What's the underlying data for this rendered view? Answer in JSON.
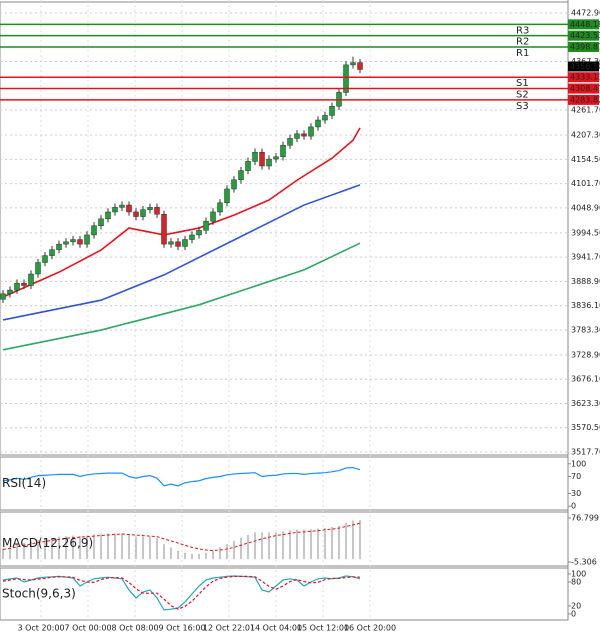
{
  "chart_data": [
    {
      "type": "candlestick",
      "candles": {
        "open": [
          3850,
          3862,
          3870,
          3885,
          3880,
          3905,
          3930,
          3945,
          3958,
          3970,
          3975,
          3980,
          3970,
          3990,
          4010,
          4025,
          4040,
          4050,
          4055,
          4040,
          4030,
          4045,
          4050,
          4035,
          3970,
          3975,
          3965,
          3980,
          3990,
          4000,
          4020,
          4040,
          4060,
          4090,
          4110,
          4130,
          4150,
          4170,
          4140,
          4155,
          4160,
          4185,
          4200,
          4210,
          4205,
          4225,
          4240,
          4250,
          4270,
          4300,
          4360,
          4365
        ],
        "high": [
          3870,
          3878,
          3893,
          3893,
          3913,
          3938,
          3953,
          3966,
          3978,
          3983,
          3988,
          3988,
          3998,
          4018,
          4033,
          4048,
          4058,
          4063,
          4063,
          4048,
          4053,
          4058,
          4058,
          4043,
          3983,
          3983,
          3988,
          3998,
          4008,
          4028,
          4048,
          4068,
          4098,
          4118,
          4138,
          4158,
          4178,
          4178,
          4163,
          4168,
          4193,
          4208,
          4218,
          4218,
          4233,
          4248,
          4258,
          4278,
          4308,
          4368,
          4378,
          4373
        ],
        "low": [
          3842,
          3854,
          3862,
          3872,
          3872,
          3897,
          3922,
          3937,
          3950,
          3962,
          3967,
          3962,
          3962,
          3982,
          4002,
          4017,
          4032,
          4042,
          4032,
          4022,
          4022,
          4037,
          4027,
          3962,
          3962,
          3957,
          3957,
          3972,
          3982,
          3992,
          4012,
          4032,
          4052,
          4082,
          4102,
          4122,
          4142,
          4132,
          4132,
          4147,
          4152,
          4177,
          4192,
          4197,
          4197,
          4217,
          4232,
          4242,
          4262,
          4292,
          4352,
          4342
        ],
        "close": [
          3862,
          3870,
          3885,
          3880,
          3905,
          3930,
          3945,
          3958,
          3970,
          3975,
          3980,
          3970,
          3990,
          4010,
          4025,
          4040,
          4050,
          4055,
          4040,
          4030,
          4045,
          4050,
          4035,
          3970,
          3975,
          3965,
          3980,
          3990,
          4000,
          4020,
          4040,
          4060,
          4090,
          4110,
          4130,
          4150,
          4170,
          4140,
          4155,
          4160,
          4185,
          4200,
          4210,
          4205,
          4225,
          4240,
          4250,
          4270,
          4300,
          4360,
          4365,
          4350
        ]
      },
      "up_color": "#22a03c",
      "down_color": "#d8232a",
      "ylim": [
        3511.2,
        4496.8
      ],
      "yticks": [
        {
          "value": 4472.9,
          "label": "4472.90"
        },
        {
          "value": 4367.3,
          "label": "4367.30"
        },
        {
          "value": 4261.7,
          "label": "4261.70"
        },
        {
          "value": 4207.3,
          "label": "4207.30"
        },
        {
          "value": 4154.5,
          "label": "4154.50"
        },
        {
          "value": 4101.7,
          "label": "4101.70"
        },
        {
          "value": 4048.9,
          "label": "4048.90"
        },
        {
          "value": 3994.5,
          "label": "3994.50"
        },
        {
          "value": 3941.7,
          "label": "3941.70"
        },
        {
          "value": 3888.9,
          "label": "3888.90"
        },
        {
          "value": 3836.1,
          "label": "3836.10"
        },
        {
          "value": 3783.3,
          "label": "3783.30"
        },
        {
          "value": 3728.9,
          "label": "3728.90"
        },
        {
          "value": 3676.1,
          "label": "3676.10"
        },
        {
          "value": 3623.3,
          "label": "3623.30"
        },
        {
          "value": 3570.5,
          "label": "3570.50"
        },
        {
          "value": 3517.7,
          "label": "3517.70"
        }
      ],
      "grid": true,
      "moving_averages": [
        {
          "color": "#e8141e",
          "x": [
            0,
            8,
            14,
            18,
            23,
            28,
            33,
            38,
            42,
            47,
            50,
            51
          ],
          "values": [
            3855,
            3909,
            3957,
            4005,
            3990,
            4005,
            4033,
            4066,
            4109,
            4157,
            4196,
            4223
          ]
        },
        {
          "color": "#2f55d4",
          "x": [
            0,
            14,
            23,
            33,
            43,
            51
          ],
          "values": [
            3805,
            3848,
            3903,
            3979,
            4055,
            4099
          ]
        },
        {
          "color": "#2ea866",
          "x": [
            0,
            14,
            28,
            43,
            51
          ],
          "values": [
            3740,
            3783,
            3838,
            3914,
            3972
          ]
        }
      ],
      "levels": [
        {
          "name": "R3",
          "value": 4448.18,
          "color": "#1e8c1e"
        },
        {
          "name": "R2",
          "value": 4423.53,
          "color": "#1e8c1e"
        },
        {
          "name": "R1",
          "value": 4398.87,
          "color": "#1e8c1e"
        },
        {
          "name": "S1",
          "value": 4333.13,
          "color": "#e0141e"
        },
        {
          "name": "S2",
          "value": 4308.47,
          "color": "#e0141e"
        },
        {
          "name": "S3",
          "value": 4283.82,
          "color": "#e0141e"
        }
      ],
      "last_price": {
        "value": 4356.5,
        "label": "4356.50"
      },
      "x_labels": [
        ":00",
        "3 Oct 20:00",
        "7 Oct 00:00",
        "8 Oct 08:00",
        "9 Oct 16:00",
        "12 Oct 22:01",
        "14 Oct 04:00",
        "15 Oct 12:00",
        "16 Oct 20:00"
      ]
    },
    {
      "type": "line",
      "title": "RSI(14)",
      "ylim": [
        -9,
        116
      ],
      "yticks": [
        100,
        70,
        30,
        0
      ],
      "series": [
        {
          "color": "#1e8fff",
          "values": [
            60,
            62,
            66,
            63,
            68,
            72,
            73,
            74,
            75,
            75,
            75,
            70,
            74,
            76,
            77,
            78,
            78,
            78,
            70,
            66,
            70,
            72,
            66,
            48,
            52,
            48,
            55,
            58,
            60,
            65,
            68,
            70,
            74,
            76,
            77,
            78,
            79,
            70,
            72,
            73,
            76,
            77,
            77,
            75,
            77,
            78,
            79,
            81,
            84,
            90,
            91,
            86
          ]
        }
      ]
    },
    {
      "type": "macd",
      "title": "MACD(12,26,9)",
      "ylim": [
        -12.8,
        88
      ],
      "yticks": [
        76.799,
        -5.306
      ],
      "histogram": {
        "color": "#b4b4b4",
        "values": [
          20,
          24,
          28,
          30,
          33,
          36,
          38,
          40,
          42,
          43,
          44,
          43,
          44,
          46,
          47,
          48,
          48,
          48,
          45,
          42,
          42,
          42,
          39,
          28,
          22,
          16,
          12,
          10,
          10,
          12,
          16,
          22,
          28,
          34,
          40,
          45,
          50,
          50,
          50,
          50,
          52,
          54,
          55,
          55,
          56,
          57,
          58,
          60,
          62,
          68,
          72,
          73
        ]
      },
      "signal": {
        "color": "#e0141e",
        "values": [
          18,
          20,
          23,
          26,
          28,
          31,
          33,
          35,
          37,
          39,
          40,
          41,
          42,
          43,
          44,
          45,
          46,
          47,
          46,
          45,
          44,
          43,
          42,
          38,
          34,
          30,
          26,
          22,
          19,
          17,
          16,
          17,
          19,
          22,
          26,
          30,
          34,
          38,
          41,
          44,
          46,
          48,
          50,
          51,
          52,
          53,
          55,
          56,
          58,
          61,
          64,
          67
        ]
      }
    },
    {
      "type": "line",
      "title": "Stoch(9,6,3)",
      "ylim": [
        -15,
        115
      ],
      "yticks": [
        100,
        80,
        20,
        0
      ],
      "series": [
        {
          "color": "#20a8b8",
          "values": [
            85,
            88,
            90,
            80,
            85,
            90,
            92,
            93,
            94,
            92,
            90,
            70,
            80,
            88,
            90,
            92,
            90,
            88,
            60,
            40,
            55,
            60,
            40,
            10,
            12,
            15,
            30,
            50,
            70,
            85,
            90,
            92,
            94,
            95,
            94,
            93,
            92,
            60,
            55,
            70,
            85,
            88,
            85,
            70,
            80,
            88,
            90,
            88,
            90,
            95,
            93,
            88
          ]
        },
        {
          "color": "#e0141e",
          "dashed": true,
          "values": [
            82,
            85,
            88,
            86,
            85,
            87,
            89,
            92,
            93,
            93,
            92,
            84,
            80,
            79,
            86,
            90,
            91,
            90,
            79,
            63,
            52,
            52,
            52,
            37,
            21,
            12,
            19,
            32,
            50,
            68,
            82,
            89,
            92,
            94,
            94,
            94,
            93,
            82,
            69,
            62,
            70,
            81,
            86,
            81,
            78,
            79,
            86,
            89,
            89,
            91,
            93,
            92
          ]
        }
      ]
    }
  ]
}
